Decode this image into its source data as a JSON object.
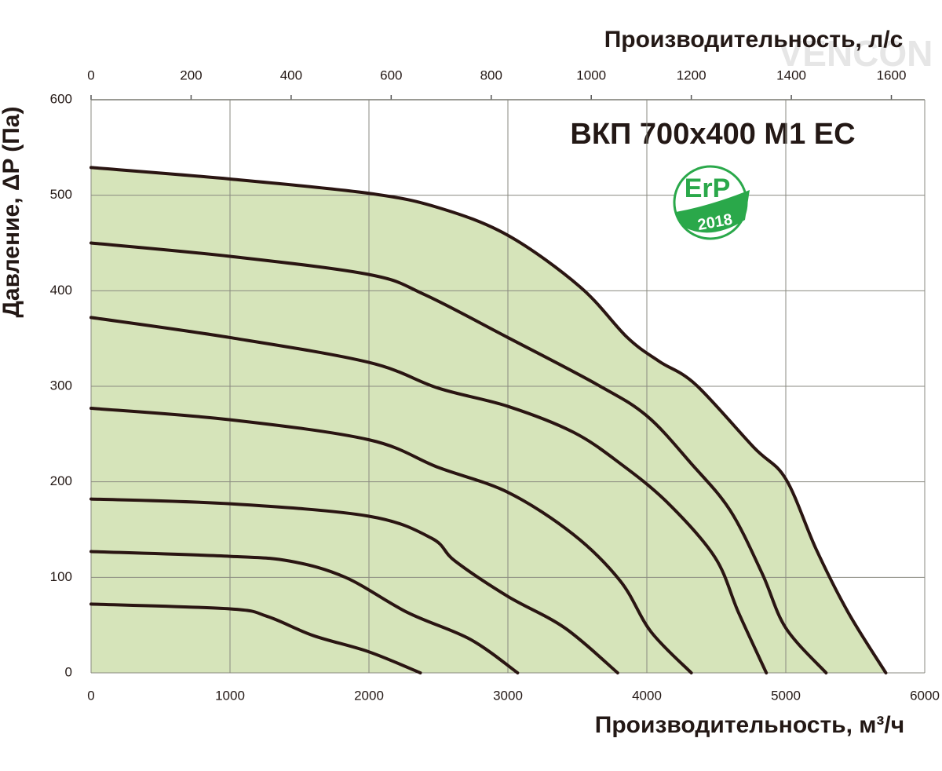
{
  "chart_data": {
    "type": "line",
    "title": "ВКП 700x400 М1 ЕС",
    "xlabel": "Производительность, м³/ч",
    "x2label": "Производительность, л/с",
    "ylabel": "Давление, ΔP (Па)",
    "badge": {
      "text": "ErP",
      "year": "2018",
      "color": "#2aa84a"
    },
    "watermark": "VENCON",
    "xlim": [
      0,
      6000
    ],
    "xticks": [
      0,
      1000,
      2000,
      3000,
      4000,
      5000,
      6000
    ],
    "x2lim": [
      0,
      1666.67
    ],
    "x2ticks": [
      0,
      200,
      400,
      600,
      800,
      1000,
      1200,
      1400,
      1600
    ],
    "ylim": [
      0,
      600
    ],
    "yticks": [
      0,
      100,
      200,
      300,
      400,
      500,
      600
    ],
    "grid": true,
    "line_color": "#2a1512",
    "area_color": "#d6e4ba",
    "series": [
      {
        "x": [
          0,
          1000,
          2000,
          2500,
          3000,
          3520,
          3860,
          4090,
          4350,
          4770,
          5000,
          5220,
          5450,
          5720
        ],
        "values": [
          529,
          517,
          502,
          487,
          458,
          404,
          351,
          326,
          302,
          236,
          203,
          129,
          63,
          0
        ]
      },
      {
        "x": [
          0,
          1000,
          2000,
          2400,
          3000,
          3640,
          4000,
          4320,
          4600,
          4830,
          5000,
          5290
        ],
        "values": [
          450,
          436,
          417,
          396,
          351,
          302,
          269,
          219,
          170,
          104,
          47,
          0
        ]
      },
      {
        "x": [
          0,
          1000,
          2000,
          2500,
          3000,
          3470,
          3810,
          4150,
          4490,
          4660,
          4860
        ],
        "values": [
          372,
          351,
          325,
          298,
          279,
          252,
          219,
          178,
          121,
          63,
          0
        ]
      },
      {
        "x": [
          0,
          1000,
          2000,
          2500,
          3000,
          3470,
          3810,
          4030,
          4320
        ],
        "values": [
          277,
          265,
          244,
          215,
          189,
          145,
          96,
          43,
          0
        ]
      },
      {
        "x": [
          0,
          1000,
          2000,
          2450,
          2620,
          3000,
          3410,
          3790
        ],
        "values": [
          182,
          177,
          164,
          141,
          117,
          80,
          47,
          0
        ]
      },
      {
        "x": [
          0,
          1000,
          1430,
          1830,
          2280,
          2730,
          3070
        ],
        "values": [
          127,
          122,
          117,
          100,
          63,
          35,
          0
        ]
      },
      {
        "x": [
          0,
          1000,
          1270,
          1600,
          2000,
          2370
        ],
        "values": [
          72,
          67,
          59,
          39,
          22,
          0
        ]
      }
    ]
  }
}
